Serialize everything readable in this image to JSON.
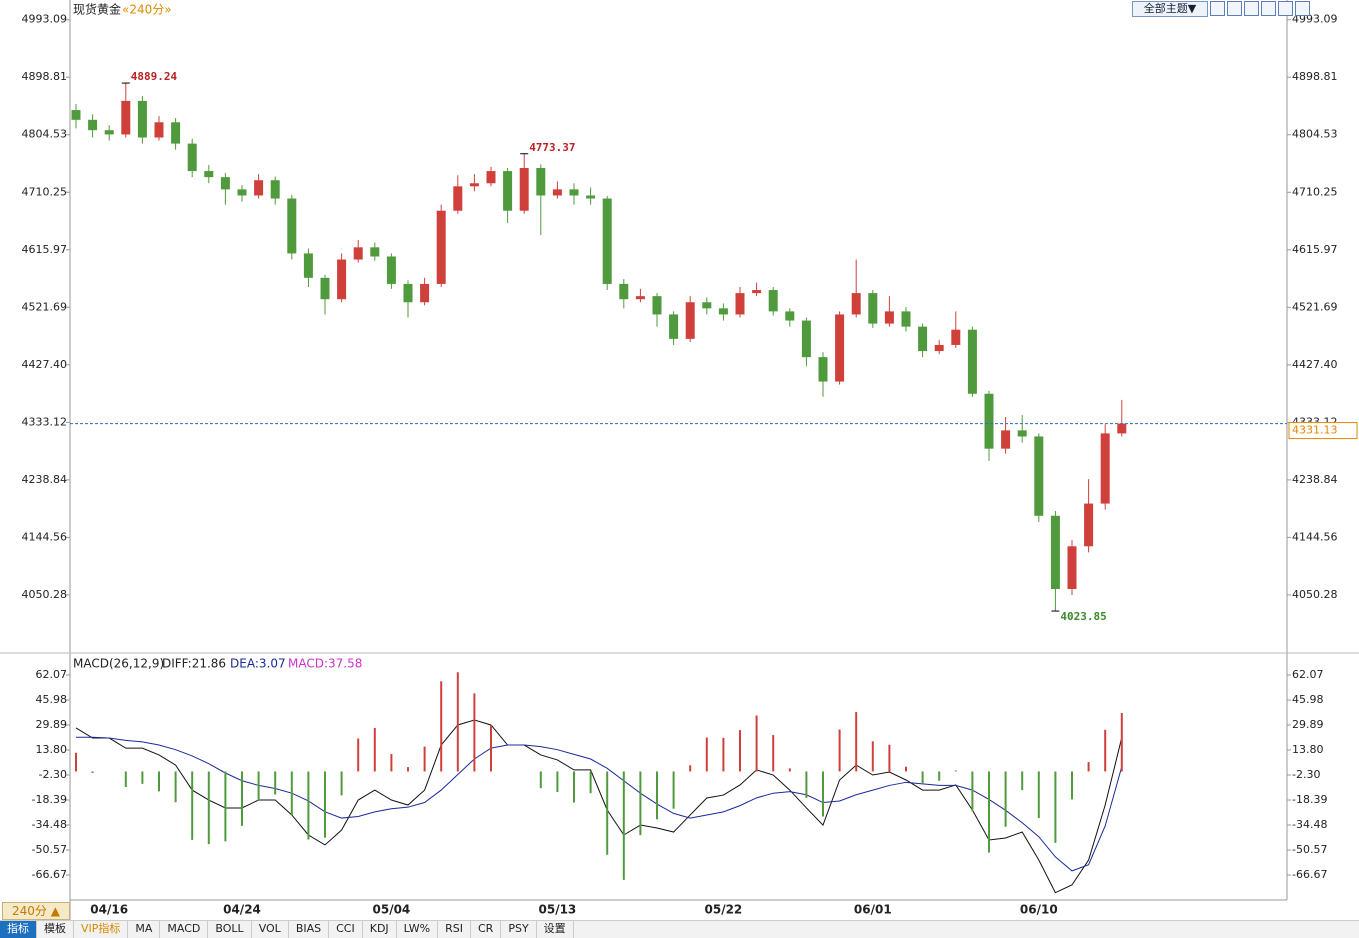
{
  "chart_data": [
    {
      "type": "candlestick",
      "title": "现货黄金",
      "subtitle": "«240分»",
      "categories": [
        null,
        null,
        "04/16",
        null,
        null,
        null,
        null,
        null,
        null,
        null,
        "04/24",
        null,
        null,
        null,
        null,
        null,
        null,
        null,
        null,
        "05/04",
        null,
        null,
        null,
        null,
        null,
        null,
        null,
        null,
        null,
        "05/13",
        null,
        null,
        null,
        null,
        null,
        null,
        null,
        null,
        null,
        "05/22",
        null,
        null,
        null,
        null,
        null,
        null,
        null,
        null,
        "06/01",
        null,
        null,
        null,
        null,
        null,
        null,
        null,
        null,
        null,
        "06/10",
        null,
        null,
        null,
        null,
        null
      ],
      "open": [
        4845,
        4829,
        4812,
        4805,
        4860,
        4800,
        4825,
        4790,
        4745,
        4735,
        4715,
        4705,
        4730,
        4700,
        4610,
        4570,
        4535,
        4600,
        4620,
        4605,
        4560,
        4530,
        4560,
        4680,
        4720,
        4725,
        4745,
        4680,
        4750,
        4705,
        4715,
        4705,
        4700,
        4560,
        4535,
        4540,
        4510,
        4470,
        4530,
        4520,
        4510,
        4545,
        4550,
        4515,
        4500,
        4440,
        4400,
        4510,
        4545,
        4495,
        4515,
        4490,
        4450,
        4460,
        4485,
        4380,
        4290,
        4320,
        4310,
        4180,
        4060,
        4130,
        4200,
        4315
      ],
      "high": [
        4855,
        4838,
        4820,
        4889.24,
        4868,
        4835,
        4832,
        4798,
        4755,
        4742,
        4722,
        4740,
        4736,
        4706,
        4618,
        4575,
        4610,
        4632,
        4628,
        4610,
        4566,
        4570,
        4690,
        4738,
        4740,
        4752,
        4750,
        4773.37,
        4756,
        4728,
        4725,
        4718,
        4704,
        4568,
        4552,
        4545,
        4515,
        4540,
        4538,
        4528,
        4555,
        4562,
        4555,
        4520,
        4505,
        4448,
        4515,
        4600,
        4550,
        4540,
        4522,
        4495,
        4468,
        4515,
        4490,
        4385,
        4342,
        4345,
        4315,
        4188,
        4140,
        4240,
        4330,
        4370
      ],
      "low": [
        4815,
        4800,
        4795,
        4800,
        4790,
        4795,
        4780,
        4735,
        4725,
        4690,
        4695,
        4700,
        4690,
        4600,
        4555,
        4510,
        4530,
        4595,
        4598,
        4552,
        4505,
        4525,
        4555,
        4675,
        4712,
        4720,
        4660,
        4675,
        4640,
        4700,
        4690,
        4690,
        4550,
        4520,
        4530,
        4490,
        4460,
        4465,
        4510,
        4500,
        4505,
        4540,
        4508,
        4490,
        4425,
        4375,
        4395,
        4505,
        4488,
        4490,
        4482,
        4440,
        4445,
        4455,
        4375,
        4270,
        4282,
        4300,
        4170,
        4023.85,
        4050,
        4120,
        4190,
        4310
      ],
      "close": [
        4829,
        4812,
        4805,
        4860,
        4800,
        4825,
        4790,
        4745,
        4735,
        4715,
        4705,
        4730,
        4700,
        4610,
        4570,
        4535,
        4600,
        4620,
        4605,
        4560,
        4530,
        4560,
        4680,
        4720,
        4725,
        4745,
        4680,
        4750,
        4705,
        4715,
        4705,
        4700,
        4560,
        4535,
        4540,
        4510,
        4470,
        4530,
        4520,
        4510,
        4545,
        4550,
        4515,
        4500,
        4440,
        4400,
        4510,
        4545,
        4495,
        4515,
        4490,
        4450,
        4460,
        4485,
        4380,
        4290,
        4320,
        4310,
        4180,
        4060,
        4130,
        4200,
        4315,
        4331.13
      ],
      "up_color": "#d0403a",
      "down_color": "#4f9a3c",
      "ylim": [
        3960,
        5009
      ],
      "yticks": [
        4050.28,
        4144.56,
        4238.84,
        4333.12,
        {
          "value": 4427.4,
          "label": "4427.40"
        },
        4521.69,
        4615.97,
        4710.25,
        4804.53,
        4898.81,
        4993.09
      ],
      "high_annotations": [
        3,
        27
      ],
      "low_annotations": [
        59
      ],
      "last_price_line": true
    },
    {
      "type": "macd",
      "title": "MACD(26,12,9)",
      "series": [
        {
          "name": "DIFF:21.86",
          "color": "#111111",
          "kind": "line",
          "values": [
            28,
            21.5,
            21.5,
            15,
            15,
            10.6,
            4.1,
            -12,
            -18.4,
            -23.5,
            -23.5,
            -18.4,
            -18.4,
            -28,
            -40.9,
            -47.3,
            -37.7,
            -18.4,
            -12,
            -18.4,
            -21.6,
            -12,
            17,
            29.9,
            33.1,
            29.9,
            17,
            17,
            10.6,
            7.4,
            1,
            1,
            -24.8,
            -40.9,
            -34.5,
            -36.4,
            -39,
            -28,
            -17.1,
            -15.2,
            -8.7,
            1,
            -2.3,
            -12,
            -23.5,
            -34.5,
            -5.5,
            4.1,
            -2.3,
            -0.4,
            -5.5,
            -12,
            -12,
            -8.7,
            -24.8,
            -44.1,
            -42.8,
            -39,
            -57,
            -78,
            -73,
            -57,
            -21.6,
            21.86
          ]
        },
        {
          "name": "DEA:3.07",
          "color": "#1a2a9a",
          "kind": "line",
          "values": [
            22,
            22,
            21.5,
            20,
            19,
            17,
            14,
            10,
            5,
            -1,
            -6,
            -9,
            -11,
            -14,
            -19,
            -26,
            -30,
            -29,
            -26,
            -24,
            -23,
            -20,
            -12,
            -2,
            8,
            15,
            17,
            17,
            16,
            14,
            11,
            8,
            2,
            -6,
            -14,
            -21,
            -27,
            -30,
            -28,
            -26,
            -22,
            -17,
            -14,
            -13,
            -15,
            -20,
            -19,
            -15,
            -12,
            -9,
            -7,
            -8,
            -9,
            -9,
            -12,
            -18,
            -25,
            -33,
            -42,
            -55,
            -64,
            -60,
            -35,
            3.07
          ]
        },
        {
          "name": "MACD:37.58",
          "color": "#cc33cc",
          "kind": "histogram",
          "up_color": "#d0403a",
          "down_color": "#4f9a3c",
          "values": [
            12,
            -1,
            0,
            -10,
            -8,
            -12.8,
            -19.8,
            -44,
            -46.8,
            -45,
            -35,
            -18.8,
            -14.8,
            -28,
            -43.8,
            -42.6,
            -15.4,
            21.2,
            28,
            11.2,
            2.8,
            16,
            58,
            63.8,
            50.2,
            29.8,
            0,
            0,
            -10.8,
            -13.2,
            -20,
            -14,
            -53.6,
            -69.8,
            -41,
            -30.8,
            -24,
            4,
            21.8,
            21.6,
            26.6,
            36,
            23.4,
            2,
            -17,
            -29,
            27,
            38.2,
            19.4,
            17.2,
            3,
            -8,
            -6,
            0.6,
            -25.6,
            -52.2,
            -35.6,
            -12,
            -30,
            -46,
            -18,
            6,
            26.8,
            37.58
          ]
        }
      ],
      "ylim": [
        -80.8,
        73
      ],
      "yticks": [
        -66.67,
        -50.57,
        -34.48,
        -18.39,
        {
          "value": -2.3,
          "label": "-2.30"
        },
        {
          "value": 13.8,
          "label": "13.80"
        },
        29.89,
        45.98,
        62.07
      ]
    }
  ],
  "ui": {
    "theme_button": "全部主题▼",
    "period_button": "240分 ▲",
    "tabs": [
      "指标",
      "模板",
      "VIP指标",
      "MA",
      "MACD",
      "BOLL",
      "VOL",
      "BIAS",
      "CCI",
      "KDJ",
      "LW%",
      "RSI",
      "CR",
      "PSY",
      "设置"
    ]
  }
}
